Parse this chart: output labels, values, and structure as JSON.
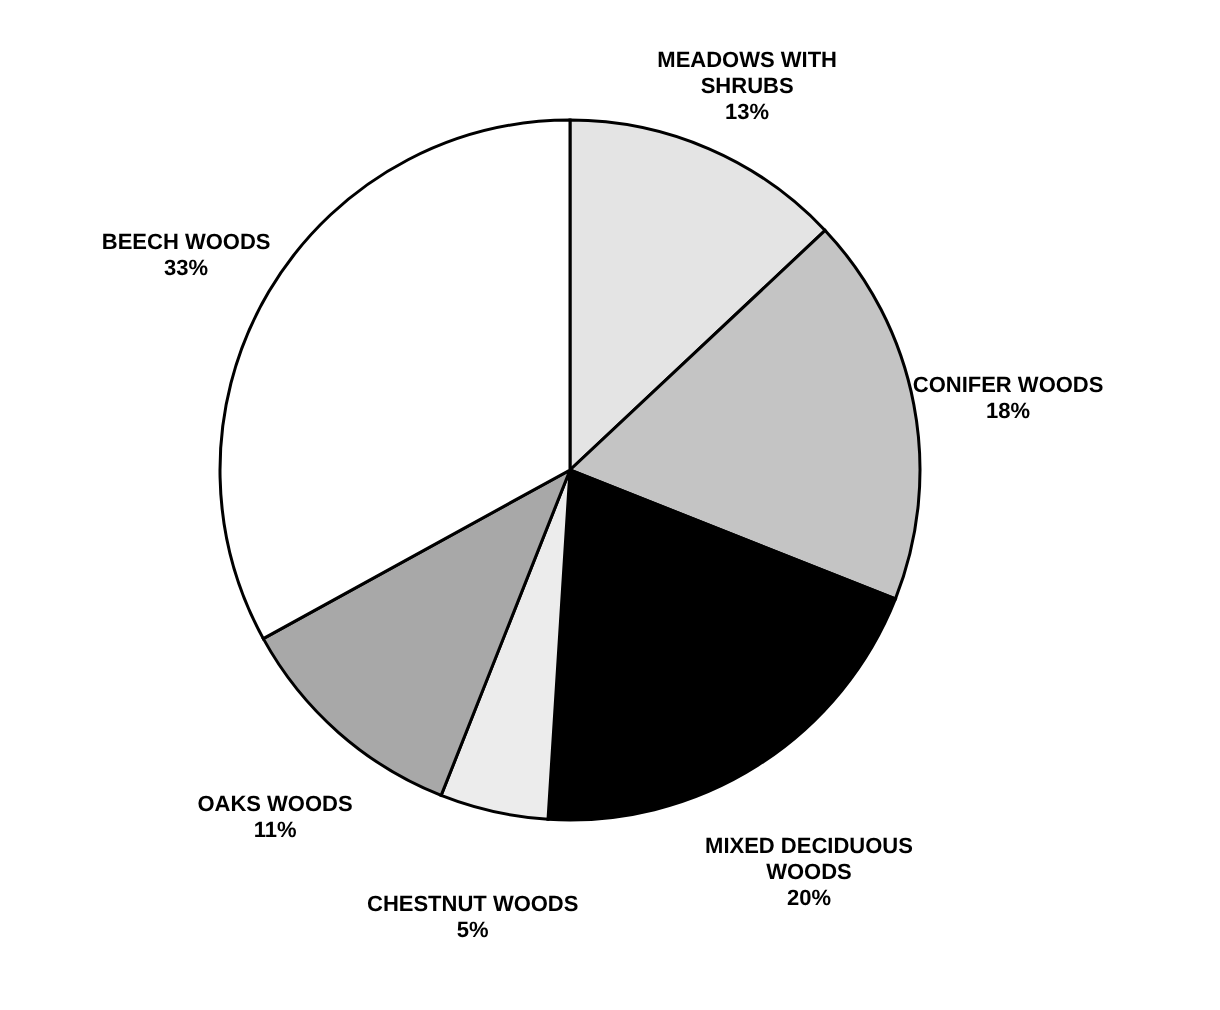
{
  "chart_data": {
    "type": "pie",
    "categories": [
      "MEADOWS WITH SHRUBS",
      "CONIFER WOODS",
      "MIXED DECIDUOUS WOODS",
      "CHESTNUT WOODS",
      "OAKS WOODS",
      "BEECH WOODS"
    ],
    "values": [
      13,
      18,
      20,
      5,
      11,
      33
    ],
    "value_labels": [
      "13%",
      "18%",
      "20%",
      "5%",
      "11%",
      "33%"
    ],
    "colors": [
      "#e4e4e4",
      "#c4c4c4",
      "#000000",
      "#ececec",
      "#a8a8a8",
      "#ffffff"
    ],
    "legend": false
  }
}
